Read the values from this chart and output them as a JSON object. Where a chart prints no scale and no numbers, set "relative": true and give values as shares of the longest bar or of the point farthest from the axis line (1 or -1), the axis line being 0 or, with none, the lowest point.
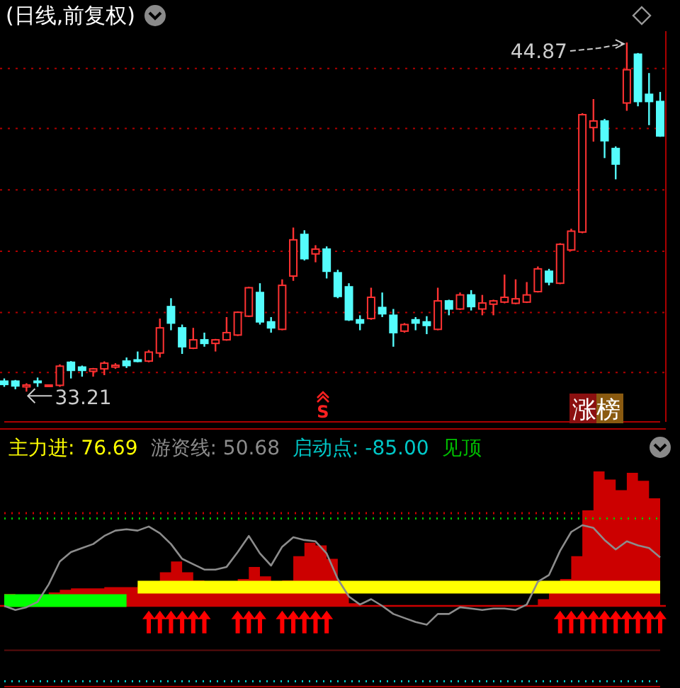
{
  "chart_data": [
    {
      "type": "candlestick",
      "title": "(日线,前复权)",
      "categories": [
        null,
        null,
        null,
        null,
        null,
        null,
        null,
        null,
        null,
        null,
        null,
        null,
        null,
        null,
        null,
        null,
        null,
        null,
        null,
        null,
        null,
        null,
        null,
        null,
        null,
        null,
        null,
        null,
        null,
        null,
        null,
        null,
        null,
        null,
        null,
        null,
        null,
        null,
        null,
        null,
        null,
        null,
        null,
        null,
        null,
        null,
        null,
        null,
        null,
        null,
        null,
        null,
        null,
        null,
        null,
        null,
        null,
        null,
        null,
        null
      ],
      "ohlc": [
        [
          33.56,
          33.65,
          33.37,
          33.45
        ],
        [
          33.56,
          33.6,
          33.29,
          33.4
        ],
        [
          33.37,
          33.49,
          33.21,
          33.43
        ],
        [
          33.56,
          33.68,
          33.37,
          33.53
        ],
        [
          33.4,
          33.45,
          33.37,
          33.43
        ],
        [
          33.42,
          34.12,
          33.37,
          34.06
        ],
        [
          34.19,
          34.23,
          33.65,
          33.92
        ],
        [
          34.03,
          34.08,
          33.71,
          33.92
        ],
        [
          33.89,
          34.0,
          33.71,
          33.97
        ],
        [
          33.97,
          34.22,
          33.76,
          34.16
        ],
        [
          34.03,
          34.16,
          33.97,
          34.09
        ],
        [
          34.23,
          34.35,
          34.0,
          34.08
        ],
        [
          34.27,
          34.55,
          34.19,
          34.22
        ],
        [
          34.23,
          34.6,
          34.19,
          34.53
        ],
        [
          34.5,
          35.65,
          34.35,
          35.34
        ],
        [
          36.05,
          36.33,
          35.26,
          35.5
        ],
        [
          35.34,
          35.45,
          34.47,
          34.71
        ],
        [
          34.66,
          35.34,
          34.63,
          34.94
        ],
        [
          34.94,
          35.18,
          34.71,
          34.82
        ],
        [
          34.82,
          34.97,
          34.55,
          34.94
        ],
        [
          34.94,
          35.7,
          34.91,
          35.18
        ],
        [
          35.1,
          35.89,
          35.07,
          35.86
        ],
        [
          35.73,
          36.71,
          35.7,
          36.68
        ],
        [
          36.52,
          36.83,
          35.45,
          35.54
        ],
        [
          35.54,
          35.7,
          35.18,
          35.34
        ],
        [
          35.29,
          36.96,
          35.26,
          36.76
        ],
        [
          37.07,
          38.69,
          36.91,
          38.28
        ],
        [
          38.46,
          38.6,
          37.59,
          37.65
        ],
        [
          37.81,
          38.1,
          37.53,
          37.97
        ],
        [
          37.97,
          38.06,
          36.99,
          37.23
        ],
        [
          37.18,
          37.28,
          36.33,
          36.39
        ],
        [
          36.71,
          36.83,
          35.57,
          35.61
        ],
        [
          35.61,
          35.76,
          35.26,
          35.5
        ],
        [
          35.65,
          36.68,
          35.61,
          36.36
        ],
        [
          36.02,
          36.52,
          35.7,
          35.81
        ],
        [
          35.76,
          35.97,
          34.71,
          35.18
        ],
        [
          35.23,
          35.5,
          35.18,
          35.45
        ],
        [
          35.61,
          35.7,
          35.26,
          35.5
        ],
        [
          35.54,
          35.73,
          35.13,
          35.42
        ],
        [
          35.29,
          36.68,
          35.26,
          36.24
        ],
        [
          36.24,
          36.28,
          35.76,
          35.97
        ],
        [
          35.97,
          36.52,
          35.94,
          36.44
        ],
        [
          36.44,
          36.6,
          35.92,
          36.05
        ],
        [
          35.97,
          36.44,
          35.76,
          36.17
        ],
        [
          36.13,
          36.28,
          35.76,
          36.24
        ],
        [
          36.2,
          37.12,
          36.16,
          36.36
        ],
        [
          36.16,
          36.96,
          36.13,
          36.31
        ],
        [
          36.2,
          36.87,
          36.17,
          36.44
        ],
        [
          36.55,
          37.39,
          36.52,
          37.31
        ],
        [
          37.23,
          37.31,
          36.76,
          36.87
        ],
        [
          36.83,
          38.17,
          36.8,
          38.13
        ],
        [
          37.94,
          38.65,
          37.91,
          38.57
        ],
        [
          38.54,
          42.51,
          38.5,
          42.46
        ],
        [
          42.03,
          42.98,
          41.56,
          42.25
        ],
        [
          42.25,
          42.32,
          41.01,
          41.59
        ],
        [
          41.33,
          41.4,
          40.3,
          40.81
        ],
        [
          42.85,
          44.87,
          42.59,
          43.96
        ],
        [
          44.48,
          44.52,
          42.74,
          42.9
        ],
        [
          43.14,
          43.85,
          42.11,
          42.9
        ],
        [
          42.9,
          43.22,
          41.72,
          41.75
        ]
      ],
      "colors": [
        "#54fcfc",
        "#54fcfc",
        "#ff3232",
        "#54fcfc",
        "#ff3232",
        "#ff3232",
        "#54fcfc",
        "#54fcfc",
        "#ff3232",
        "#ff3232",
        "#ff3232",
        "#54fcfc",
        "#54fcfc",
        "#ff3232",
        "#ff3232",
        "#54fcfc",
        "#54fcfc",
        "#ff3232",
        "#54fcfc",
        "#ff3232",
        "#ff3232",
        "#ff3232",
        "#ff3232",
        "#54fcfc",
        "#54fcfc",
        "#ff3232",
        "#ff3232",
        "#54fcfc",
        "#ff3232",
        "#54fcfc",
        "#54fcfc",
        "#54fcfc",
        "#54fcfc",
        "#ff3232",
        "#54fcfc",
        "#54fcfc",
        "#ff3232",
        "#54fcfc",
        "#54fcfc",
        "#ff3232",
        "#54fcfc",
        "#ff3232",
        "#54fcfc",
        "#ff3232",
        "#ff3232",
        "#ff3232",
        "#ff3232",
        "#ff3232",
        "#ff3232",
        "#54fcfc",
        "#ff3232",
        "#ff3232",
        "#ff3232",
        "#ff3232",
        "#54fcfc",
        "#54fcfc",
        "#ff3232",
        "#54fcfc",
        "#54fcfc",
        "#54fcfc"
      ],
      "ylim": [
        32.2,
        45.25
      ],
      "yticks": [
        {
          "value": 44.0,
          "label": null
        },
        {
          "value": 42.0,
          "label": null
        },
        {
          "value": 39.95,
          "label": null
        },
        {
          "value": 37.9,
          "label": null
        },
        {
          "value": 35.85,
          "label": null
        },
        {
          "value": 33.85,
          "label": null
        }
      ],
      "grid": "y",
      "annotations": [
        "44.87",
        "33.21",
        "S",
        "涨榜"
      ]
    },
    {
      "type": "area",
      "relative": true,
      "legend": "top left",
      "ref_lines": [
        {
          "axis": "y",
          "value": 0,
          "color": "#cc0000"
        }
      ],
      "categories": [
        null,
        null,
        null,
        null,
        null,
        null,
        null,
        null,
        null,
        null,
        null,
        null,
        null,
        null,
        null,
        null,
        null,
        null,
        null,
        null,
        null,
        null,
        null,
        null,
        null,
        null,
        null,
        null,
        null,
        null,
        null,
        null,
        null,
        null,
        null,
        null,
        null,
        null,
        null,
        null,
        null,
        null,
        null,
        null,
        null,
        null,
        null,
        null,
        null,
        null,
        null,
        null,
        null,
        null,
        null,
        null,
        null,
        null,
        null,
        null
      ],
      "series": [
        {
          "type": "area",
          "color": "#cc0000",
          "values": [
            0.09,
            0.07,
            0.07,
            0.08,
            0.1,
            0.12,
            0.13,
            0.13,
            0.13,
            0.14,
            0.14,
            0.14,
            0.15,
            0.17,
            0.25,
            0.33,
            0.25,
            0.19,
            0.15,
            0.14,
            0.15,
            0.2,
            0.29,
            0.22,
            0.16,
            0.19,
            0.37,
            0.47,
            0.45,
            0.35,
            0.17,
            0.02,
            0,
            0,
            0,
            0,
            0,
            0,
            0,
            0,
            0,
            0,
            0,
            0,
            0,
            0,
            0,
            0,
            0.05,
            0.12,
            0.2,
            0.37,
            0.71,
            1.0,
            0.94,
            0.86,
            0.99,
            0.93,
            0.8,
            0.59
          ]
        },
        {
          "type": "line",
          "name": "主力进: 76.69",
          "color": "#ffff00",
          "values": [
            null,
            null,
            null,
            null,
            null,
            null,
            null,
            null,
            null,
            null,
            null,
            null,
            0.14,
            0.14,
            0.14,
            0.14,
            0.14,
            0.14,
            0.14,
            0.14,
            0.14,
            0.14,
            0.14,
            0.14,
            0.14,
            0.14,
            0.14,
            0.14,
            0.14,
            0.14,
            0.14,
            0.14,
            0.14,
            0.14,
            0.14,
            0.14,
            0.14,
            0.14,
            0.14,
            0.14,
            0.14,
            0.14,
            0.14,
            0.14,
            0.14,
            0.14,
            0.14,
            0.14,
            0.14,
            0.14,
            0.14,
            0.14,
            0.14,
            0.14,
            0.14,
            0.14,
            0.14,
            0.14,
            0.14,
            0.14
          ]
        },
        {
          "type": "line",
          "color": "#00ff00",
          "values": [
            0.04,
            0.04,
            0.04,
            0.04,
            0.04,
            0.04,
            0.04,
            0.04,
            0.04,
            0.04,
            0.04,
            0.04,
            null,
            null,
            null,
            null,
            null,
            null,
            null,
            null,
            null,
            null,
            null,
            null,
            null,
            null,
            null,
            null,
            null,
            null,
            null,
            null,
            null,
            null,
            null,
            null,
            null,
            null,
            null,
            null,
            null,
            null,
            null,
            null,
            null,
            null,
            null,
            null,
            null,
            null,
            null,
            null,
            null,
            null,
            null,
            null,
            null,
            null,
            null,
            null
          ]
        },
        {
          "type": "line",
          "name": "游资线: 50.68",
          "color": "#8c8c8c",
          "values": [
            0,
            -0.03,
            -0.01,
            0.03,
            0.16,
            0.33,
            0.4,
            0.43,
            0.46,
            0.52,
            0.56,
            0.57,
            0.56,
            0.59,
            0.54,
            0.46,
            0.35,
            0.31,
            0.27,
            0.27,
            0.29,
            0.4,
            0.52,
            0.39,
            0.3,
            0.44,
            0.51,
            0.49,
            0.48,
            0.39,
            0.2,
            0.07,
            0.01,
            0.05,
            0,
            -0.06,
            -0.09,
            -0.12,
            -0.14,
            -0.06,
            -0.06,
            -0.01,
            -0.02,
            -0.03,
            -0.02,
            -0.02,
            -0.03,
            0.01,
            0.18,
            0.23,
            0.41,
            0.55,
            0.6,
            0.58,
            0.49,
            0.42,
            0.48,
            0.45,
            0.43,
            0.36
          ]
        },
        {
          "type": "line",
          "name": "启动点: -85.00",
          "color": "#00c8c8",
          "line_style": "dotted",
          "values": [
            -0.56,
            -0.56,
            -0.56,
            -0.56,
            -0.56,
            -0.56,
            -0.56,
            -0.56,
            -0.56,
            -0.56,
            -0.56,
            -0.56,
            -0.56,
            -0.56,
            -0.56,
            -0.56,
            -0.56,
            -0.56,
            -0.56,
            -0.56,
            -0.56,
            -0.56,
            -0.56,
            -0.56,
            -0.56,
            -0.56,
            -0.56,
            -0.56,
            -0.56,
            -0.56,
            -0.56,
            -0.56,
            -0.56,
            -0.56,
            -0.56,
            -0.56,
            -0.56,
            -0.56,
            -0.56,
            -0.56,
            -0.56,
            -0.56,
            -0.56,
            -0.56,
            -0.56,
            -0.56,
            -0.56,
            -0.56,
            -0.56,
            -0.56,
            -0.56,
            -0.56,
            -0.56,
            -0.56,
            -0.56,
            -0.56,
            -0.56,
            -0.56,
            -0.56,
            -0.56
          ]
        },
        {
          "type": "line",
          "name": "见顶",
          "color": "#00c000",
          "line_style": "dotted",
          "values": [
            0.65,
            0.65,
            0.65,
            0.65,
            0.65,
            0.65,
            0.65,
            0.65,
            0.65,
            0.65,
            0.65,
            0.65,
            0.65,
            0.65,
            0.65,
            0.65,
            0.65,
            0.65,
            0.65,
            0.65,
            0.65,
            0.65,
            0.65,
            0.65,
            0.65,
            0.65,
            0.65,
            0.65,
            0.65,
            0.65,
            0.65,
            0.65,
            0.65,
            0.65,
            0.65,
            0.65,
            0.65,
            0.65,
            0.65,
            0.65,
            0.65,
            0.65,
            0.65,
            0.65,
            0.65,
            0.65,
            0.65,
            0.65,
            0.65,
            0.65,
            0.65,
            0.65,
            0.65,
            0.65,
            0.65,
            0.65,
            0.65,
            0.65,
            0.65,
            0.65
          ]
        },
        {
          "type": "line",
          "color": "#cc0000",
          "line_style": "dotted",
          "values": [
            0.69,
            0.69,
            0.69,
            0.69,
            0.69,
            0.69,
            0.69,
            0.69,
            0.69,
            0.69,
            0.69,
            0.69,
            0.69,
            0.69,
            0.69,
            0.69,
            0.69,
            0.69,
            0.69,
            0.69,
            0.69,
            0.69,
            0.69,
            0.69,
            0.69,
            0.69,
            0.69,
            0.69,
            0.69,
            0.69,
            0.69,
            0.69,
            0.69,
            0.69,
            0.69,
            0.69,
            0.69,
            0.69,
            0.69,
            0.69,
            0.69,
            0.69,
            0.69,
            0.69,
            0.69,
            0.69,
            0.69,
            0.69,
            0.69,
            0.69,
            0.69,
            0.69,
            0.69,
            0.69,
            0.69,
            0.69,
            0.69,
            0.69,
            0.69,
            0.69
          ]
        },
        {
          "type": "line",
          "color": "#4a0a0a",
          "values": [
            -0.33,
            -0.33,
            -0.33,
            -0.33,
            -0.33,
            -0.33,
            -0.33,
            -0.33,
            -0.33,
            -0.33,
            -0.33,
            -0.33,
            -0.33,
            -0.33,
            -0.33,
            -0.33,
            -0.33,
            -0.33,
            -0.33,
            -0.33,
            -0.33,
            -0.33,
            -0.33,
            -0.33,
            -0.33,
            -0.33,
            -0.33,
            -0.33,
            -0.33,
            -0.33,
            -0.33,
            -0.33,
            -0.33,
            -0.33,
            -0.33,
            -0.33,
            -0.33,
            -0.33,
            -0.33,
            -0.33,
            -0.33,
            -0.33,
            -0.33,
            -0.33,
            -0.33,
            -0.33,
            -0.33,
            -0.33,
            -0.33,
            -0.33,
            -0.33,
            -0.33,
            -0.33,
            -0.33,
            -0.33,
            -0.33,
            -0.33,
            -0.33,
            -0.33,
            -0.33
          ]
        },
        {
          "type": "scatter",
          "color": "#ff0000",
          "marker": "triangle",
          "values": [
            null,
            null,
            null,
            null,
            null,
            null,
            null,
            null,
            null,
            null,
            null,
            null,
            null,
            -0.12,
            -0.12,
            -0.12,
            -0.12,
            -0.12,
            -0.12,
            null,
            null,
            -0.12,
            -0.12,
            -0.12,
            null,
            -0.12,
            -0.12,
            -0.12,
            -0.12,
            -0.12,
            null,
            null,
            null,
            null,
            null,
            null,
            null,
            null,
            null,
            null,
            null,
            null,
            null,
            null,
            null,
            null,
            null,
            null,
            null,
            null,
            -0.12,
            -0.12,
            -0.12,
            -0.12,
            -0.12,
            -0.12,
            -0.12,
            -0.12,
            -0.12,
            -0.12
          ]
        }
      ]
    }
  ]
}
